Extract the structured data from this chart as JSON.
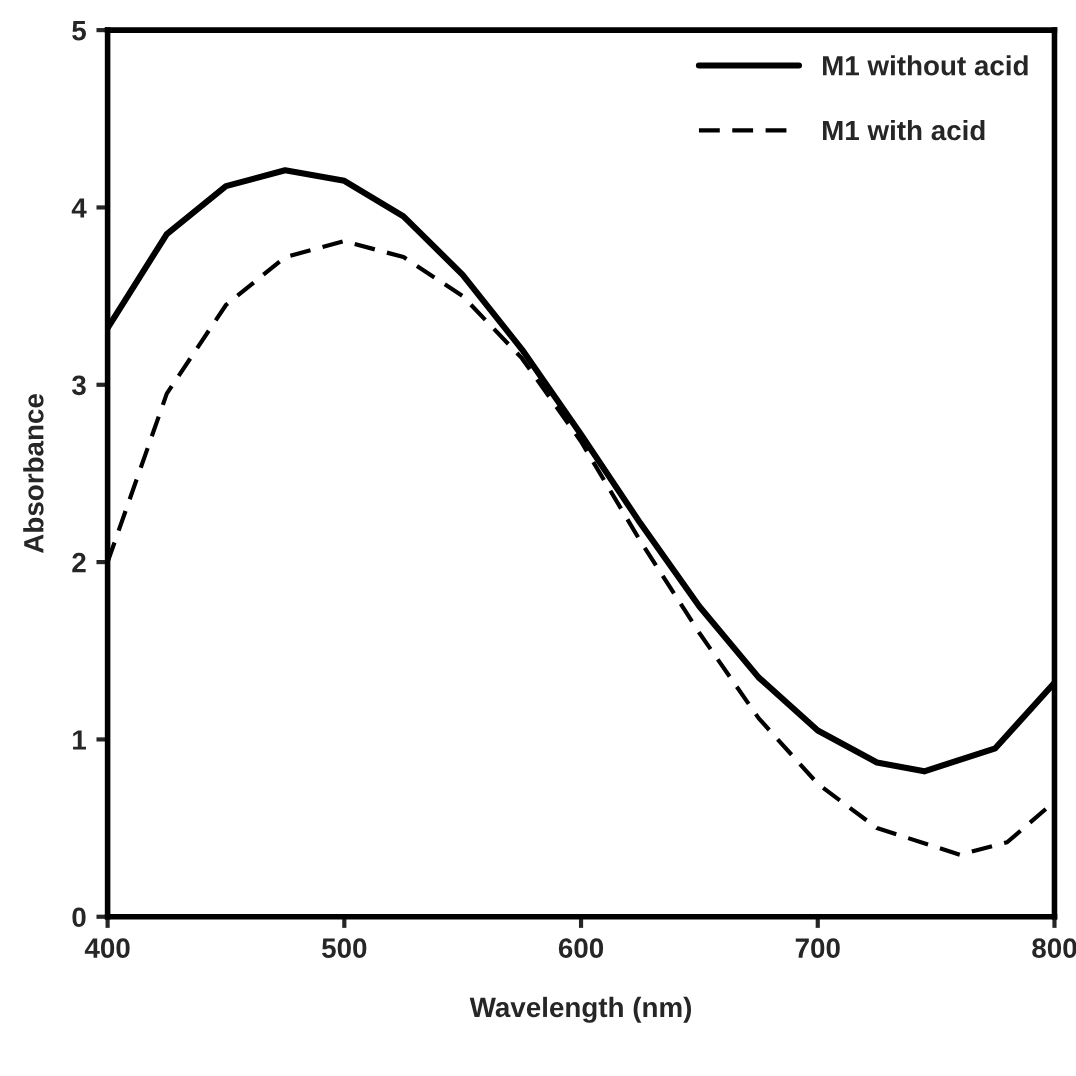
{
  "chart_data": {
    "type": "line",
    "xlabel": "Wavelength (nm)",
    "ylabel": "Absorbance",
    "xlim": [
      400,
      800
    ],
    "xticks": [
      400,
      500,
      600,
      700,
      800
    ],
    "ylim": [
      0,
      5
    ],
    "yticks": [
      0,
      1,
      2,
      3,
      4,
      5
    ],
    "grid": false,
    "legend": "top right",
    "marker": "none",
    "series": [
      {
        "name": "M1 without acid",
        "color": "#000000",
        "line_style": "solid",
        "x": [
          400,
          425,
          450,
          475,
          500,
          525,
          550,
          575,
          600,
          625,
          650,
          675,
          700,
          725,
          745,
          775,
          800
        ],
        "values": [
          3.32,
          3.85,
          4.12,
          4.21,
          4.15,
          3.95,
          3.62,
          3.2,
          2.72,
          2.22,
          1.75,
          1.35,
          1.05,
          0.87,
          0.82,
          0.95,
          1.32
        ]
      },
      {
        "name": "M1 with acid",
        "color": "#000000",
        "line_style": "dashed",
        "x": [
          400,
          425,
          450,
          475,
          500,
          525,
          550,
          575,
          600,
          625,
          650,
          675,
          700,
          725,
          760,
          780,
          800
        ],
        "values": [
          2.0,
          2.95,
          3.45,
          3.72,
          3.81,
          3.72,
          3.5,
          3.15,
          2.68,
          2.12,
          1.6,
          1.12,
          0.75,
          0.5,
          0.35,
          0.42,
          0.65
        ]
      }
    ]
  }
}
